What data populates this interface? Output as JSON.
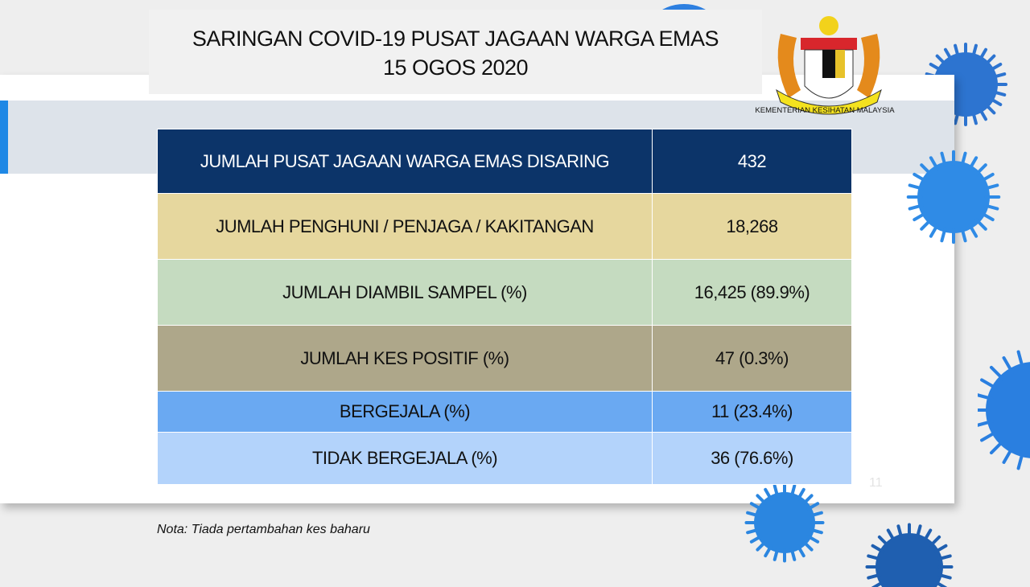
{
  "header": {
    "title_line1": "SARINGAN COVID-19 PUSAT JAGAAN WARGA EMAS",
    "title_line2": "15 OGOS 2020"
  },
  "logo": {
    "ministry": "KEMENTERIAN KESIHATAN MALAYSIA",
    "icon": "malaysia-coat-of-arms"
  },
  "table": {
    "rows": [
      {
        "label": "JUMLAH PUSAT JAGAAN WARGA EMAS DISARING",
        "value": "432",
        "bg": "#0c3469",
        "color": "#ffffff"
      },
      {
        "label": "JUMLAH PENGHUNI / PENJAGA /  KAKITANGAN",
        "value": "18,268",
        "bg": "#e6d79e",
        "color": "#111111"
      },
      {
        "label": "JUMLAH DIAMBIL SAMPEL (%)",
        "value": "16,425 (89.9%)",
        "bg": "#c5dbc0",
        "color": "#111111"
      },
      {
        "label": "JUMLAH KES POSITIF (%)",
        "value": "47 (0.3%)",
        "bg": "#aea78a",
        "color": "#111111"
      },
      {
        "label": "BERGEJALA (%)",
        "value": "11 (23.4%)",
        "bg": "#6aa9f2",
        "color": "#111111"
      },
      {
        "label": "TIDAK BERGEJALA (%)",
        "value": "36 (76.6%)",
        "bg": "#b3d3fb",
        "color": "#111111"
      }
    ]
  },
  "note": "Nota: Tiada pertambahan kes baharu",
  "page_number": "11",
  "colors": {
    "accent": "#1e88e5",
    "virus": "#1f6fd1"
  }
}
